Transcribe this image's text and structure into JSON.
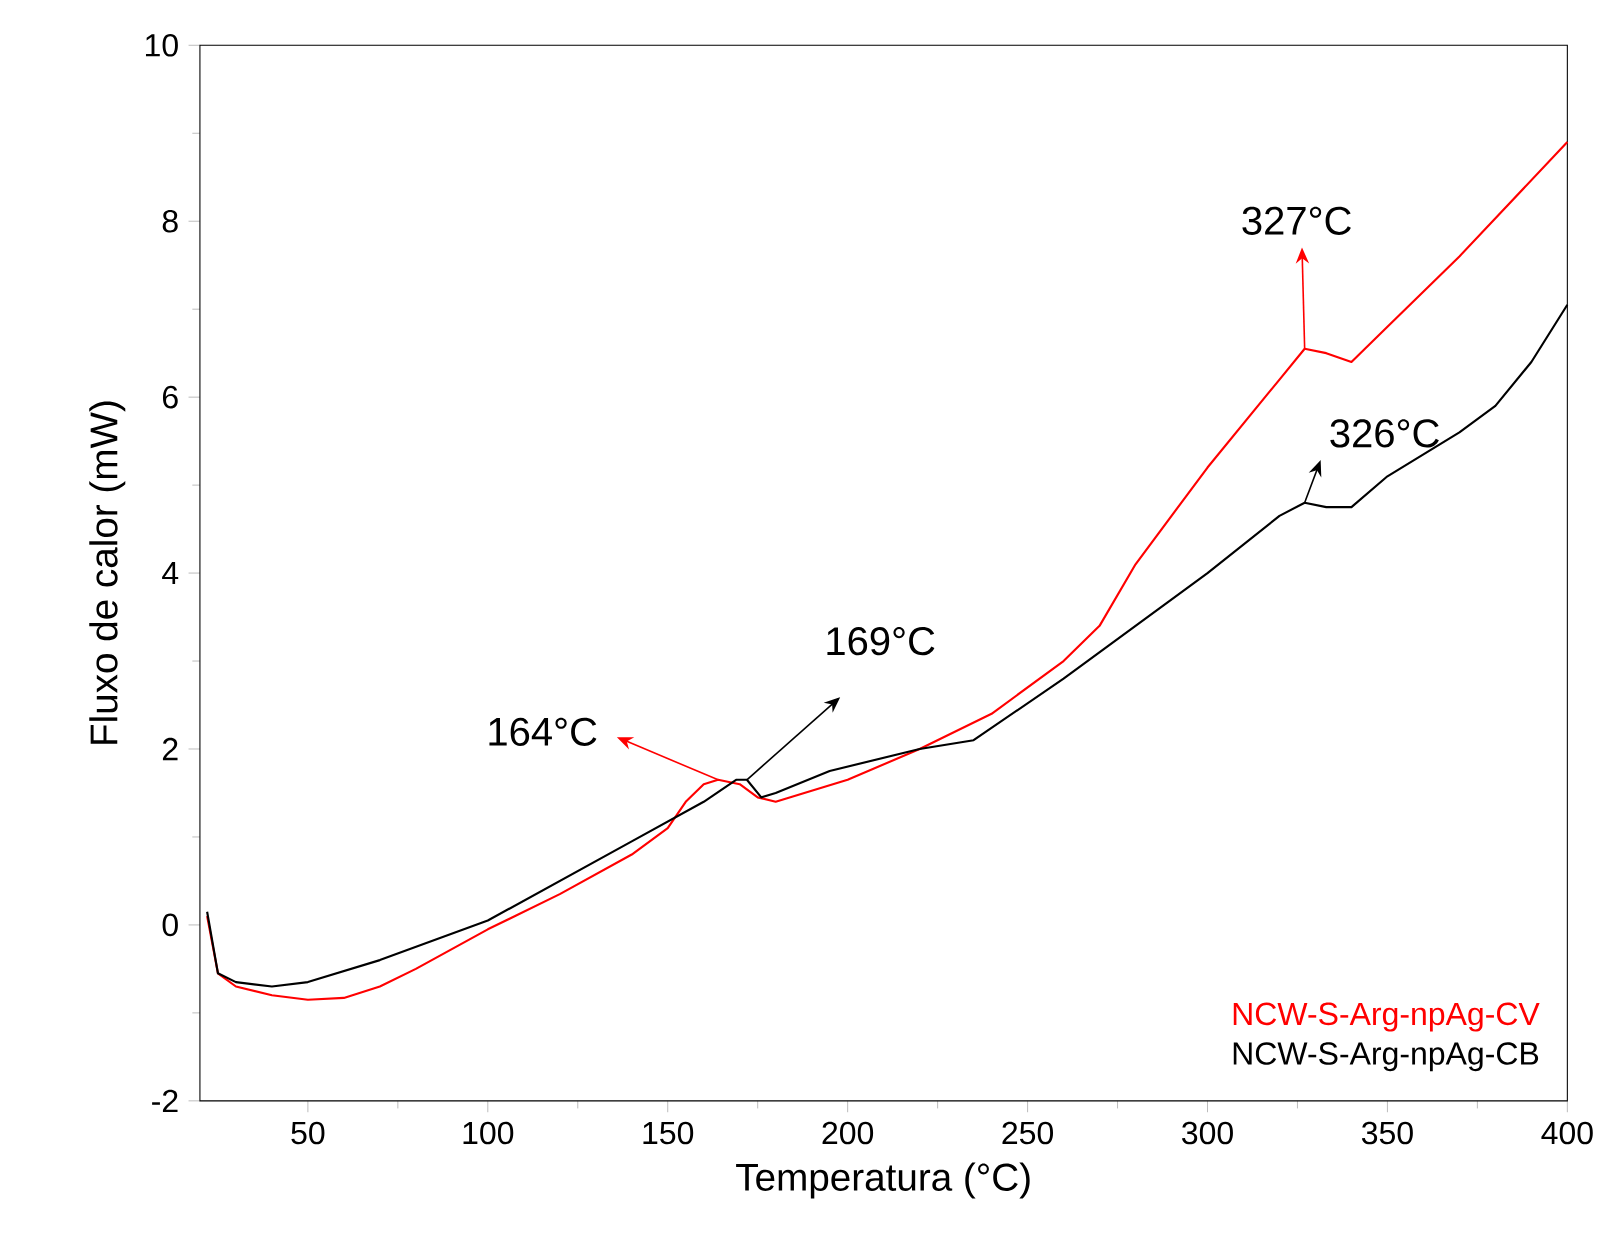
{
  "chart_data": {
    "type": "line",
    "xlabel": "Temperatura (°C)",
    "ylabel": "Fluxo de calor (mW)",
    "xlim": [
      20,
      400
    ],
    "ylim": [
      -2,
      10
    ],
    "xticks": [
      50,
      100,
      150,
      200,
      250,
      300,
      350,
      400
    ],
    "yticks": [
      -2,
      0,
      2,
      4,
      6,
      8,
      10
    ],
    "legend": "bottom right",
    "grid": false,
    "series": [
      {
        "name": "NCW-S-Arg-npAg-CV",
        "color": "#ff0000",
        "x": [
          22,
          25,
          30,
          40,
          50,
          60,
          70,
          80,
          100,
          120,
          140,
          150,
          155,
          160,
          164,
          170,
          175,
          180,
          200,
          220,
          240,
          260,
          270,
          280,
          300,
          320,
          327,
          333,
          340,
          350,
          370,
          400
        ],
        "values": [
          0.1,
          -0.55,
          -0.7,
          -0.8,
          -0.85,
          -0.83,
          -0.7,
          -0.5,
          -0.05,
          0.35,
          0.8,
          1.1,
          1.4,
          1.6,
          1.65,
          1.6,
          1.45,
          1.4,
          1.65,
          2.0,
          2.4,
          3.0,
          3.4,
          4.1,
          5.2,
          6.2,
          6.55,
          6.5,
          6.4,
          6.8,
          7.6,
          8.9
        ]
      },
      {
        "name": "NCW-S-Arg-npAg-CB",
        "color": "#000000",
        "x": [
          22,
          25,
          30,
          40,
          50,
          70,
          100,
          120,
          140,
          160,
          169,
          172,
          176,
          180,
          195,
          220,
          235,
          260,
          300,
          320,
          327,
          333,
          340,
          350,
          370,
          380,
          390,
          400
        ],
        "values": [
          0.15,
          -0.55,
          -0.65,
          -0.7,
          -0.65,
          -0.4,
          0.05,
          0.5,
          0.95,
          1.4,
          1.65,
          1.65,
          1.45,
          1.5,
          1.75,
          2.0,
          2.1,
          2.8,
          4.0,
          4.65,
          4.8,
          4.75,
          4.75,
          5.1,
          5.6,
          5.9,
          6.4,
          7.05
        ]
      }
    ],
    "annotations": [
      {
        "text": "164°C",
        "x": 164,
        "y": 1.65
      },
      {
        "text": "169°C",
        "x": 172,
        "y": 1.65
      },
      {
        "text": "326°C",
        "x": 327,
        "y": 4.8
      },
      {
        "text": "327°C",
        "x": 327,
        "y": 6.55
      }
    ]
  }
}
